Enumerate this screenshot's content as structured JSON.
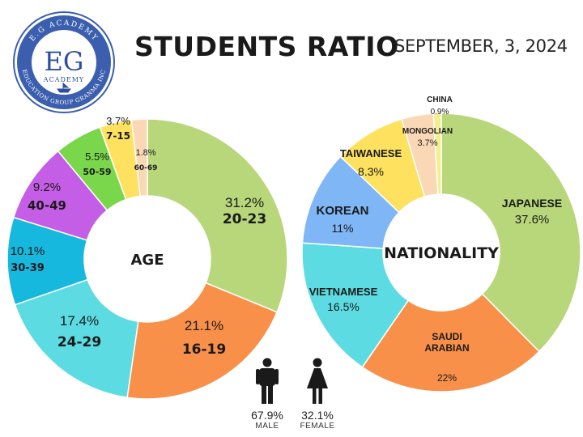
{
  "header": {
    "title": "STUDENTS RATIO",
    "date": "SEPTEMBER, 3, 2024"
  },
  "logo": {
    "ring_top_text": "E.G ACADEMY",
    "ring_bottom_text": "EDUCATION GROUP GRANMA INC",
    "monogram": "EG",
    "subtitle": "ACADEMY",
    "colors": {
      "ring": "#3b5fae",
      "monogram": "#2e4f9c"
    }
  },
  "chart_data": [
    {
      "type": "donut",
      "center_label": "AGE",
      "segments": [
        {
          "category": "20-23",
          "value": 31.2,
          "label": "31.2%",
          "color": "#b7d77a"
        },
        {
          "category": "16-19",
          "value": 21.1,
          "label": "21.1%",
          "color": "#f89049"
        },
        {
          "category": "24-29",
          "value": 17.4,
          "label": "17.4%",
          "color": "#5cdce2"
        },
        {
          "category": "30-39",
          "value": 10.1,
          "label": "10.1%",
          "color": "#16b8dd"
        },
        {
          "category": "40-49",
          "value": 9.2,
          "label": "9.2%",
          "color": "#c55ee6"
        },
        {
          "category": "50-59",
          "value": 5.5,
          "label": "5.5%",
          "color": "#7ad74b"
        },
        {
          "category": "7-15",
          "value": 3.7,
          "label": "3.7%",
          "color": "#fde15f"
        },
        {
          "category": "60-69",
          "value": 1.8,
          "label": "1.8%",
          "color": "#fad8b6"
        }
      ]
    },
    {
      "type": "donut",
      "center_label": "NATIONALITY",
      "segments": [
        {
          "category": "JAPANESE",
          "value": 37.6,
          "label": "37.6%",
          "color": "#b7d77a"
        },
        {
          "category": "SAUDI ARABIAN",
          "lines": [
            "SAUDI",
            "ARABIAN"
          ],
          "value": 22,
          "label": "22%",
          "color": "#f89049"
        },
        {
          "category": "VIETNAMESE",
          "value": 16.5,
          "label": "16.5%",
          "color": "#5cdce2"
        },
        {
          "category": "KOREAN",
          "value": 11,
          "label": "11%",
          "color": "#7fb6f5"
        },
        {
          "category": "TAIWANESE",
          "value": 8.3,
          "label": "8.3%",
          "color": "#fde15f"
        },
        {
          "category": "MONGOLIAN",
          "value": 3.7,
          "label": "3.7%",
          "color": "#fad8b6"
        },
        {
          "category": "CHINA",
          "value": 0.9,
          "label": "0.9%",
          "color": "#f4ee8f"
        }
      ]
    }
  ],
  "gender": [
    {
      "label": "MALE",
      "value": 67.9,
      "pct": "67.9%",
      "icon": "male-person-icon",
      "color": "#1a1a1a"
    },
    {
      "label": "FEMALE",
      "value": 32.1,
      "pct": "32.1%",
      "icon": "female-person-icon",
      "color": "#1a1a1a"
    }
  ]
}
